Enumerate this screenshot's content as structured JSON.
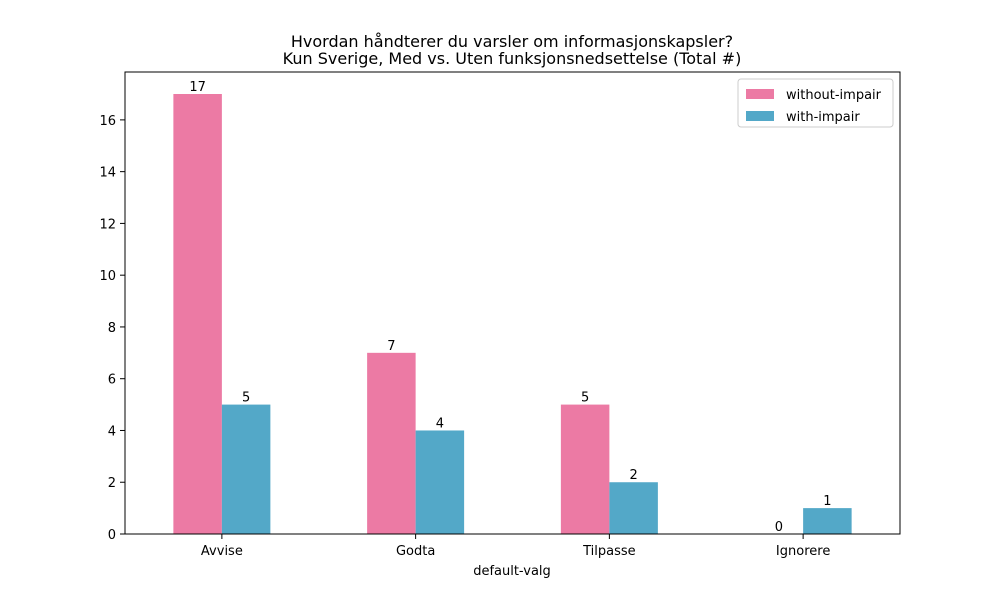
{
  "chart_data": {
    "type": "bar",
    "title": "Hvordan håndterer du varsler om informasjonskapsler?",
    "subtitle": "Kun Sverige, Med vs. Uten funksjonsnedsettelse (Total #)",
    "xlabel": "default-valg",
    "ylabel": "",
    "categories": [
      "Avvise",
      "Godta",
      "Tilpasse",
      "Ignorere"
    ],
    "series": [
      {
        "name": "without-impair",
        "values": [
          17,
          7,
          5,
          0
        ],
        "color": "#ec7aa4"
      },
      {
        "name": "with-impair",
        "values": [
          5,
          4,
          2,
          1
        ],
        "color": "#53a8c8"
      }
    ],
    "ylim": [
      0,
      17.85
    ],
    "yticks": [
      0,
      2,
      4,
      6,
      8,
      10,
      12,
      14,
      16
    ],
    "grid": false,
    "legend_position": "top-right",
    "data_labels": true
  }
}
